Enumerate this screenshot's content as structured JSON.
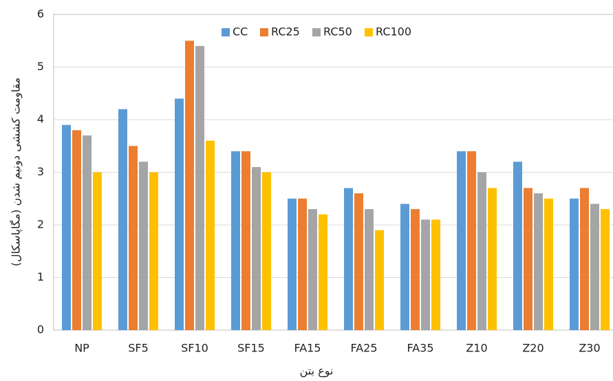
{
  "chart_data": {
    "type": "bar",
    "y_label": "مقاومت کششی دونیم شدن (مگاپاسکال)",
    "x_label": "نوع بتن",
    "categories": [
      "NP",
      "SF5",
      "SF10",
      "SF15",
      "FA15",
      "FA25",
      "FA35",
      "Z10",
      "Z20",
      "Z30"
    ],
    "series": [
      {
        "name": "CC",
        "color": "#5b9bd5",
        "values": [
          3.9,
          4.2,
          4.4,
          3.4,
          2.5,
          2.7,
          2.4,
          3.4,
          3.2,
          2.5
        ]
      },
      {
        "name": "RC25",
        "color": "#ed7d31",
        "values": [
          3.8,
          3.5,
          5.5,
          3.4,
          2.5,
          2.6,
          2.3,
          3.4,
          2.7,
          2.7
        ]
      },
      {
        "name": "RC50",
        "color": "#a5a5a5",
        "values": [
          3.7,
          3.2,
          5.4,
          3.1,
          2.3,
          2.3,
          2.1,
          3.0,
          2.6,
          2.4
        ]
      },
      {
        "name": "RC100",
        "color": "#ffc000",
        "values": [
          3.0,
          3.0,
          3.6,
          3.0,
          2.2,
          1.9,
          2.1,
          2.7,
          2.5,
          2.3
        ]
      }
    ],
    "ylim": [
      0,
      6
    ],
    "yticks": [
      0,
      1,
      2,
      3,
      4,
      5,
      6
    ],
    "grid": true,
    "legend": "top"
  }
}
